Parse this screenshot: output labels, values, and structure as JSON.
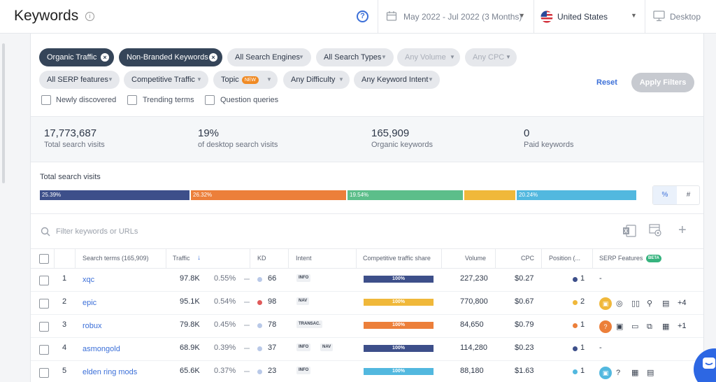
{
  "header": {
    "title": "Keywords",
    "info_icon": "info-icon",
    "help_icon": "help-icon",
    "date_range": "May 2022 - Jul 2022 (3 Months)",
    "country": "United States",
    "device": "Desktop"
  },
  "filters": {
    "chips_row1": [
      {
        "label": "Organic Traffic",
        "style": "dark",
        "removable": true
      },
      {
        "label": "Non-Branded Keywords",
        "style": "dark",
        "removable": true
      },
      {
        "label": "All Search Engines",
        "style": "grey"
      },
      {
        "label": "All Search Types",
        "style": "grey"
      },
      {
        "label": "Any Volume",
        "style": "disabled"
      },
      {
        "label": "Any CPC",
        "style": "disabled"
      }
    ],
    "chips_row2": [
      {
        "label": "All SERP features",
        "style": "grey"
      },
      {
        "label": "Competitive Traffic",
        "style": "grey"
      },
      {
        "label": "Topic",
        "style": "grey",
        "badge": "NEW"
      },
      {
        "label": "Any Difficulty",
        "style": "grey"
      },
      {
        "label": "Any Keyword Intent",
        "style": "grey"
      }
    ],
    "checkboxes": [
      {
        "label": "Newly discovered",
        "checked": false
      },
      {
        "label": "Trending terms",
        "checked": false
      },
      {
        "label": "Question queries",
        "checked": false
      }
    ],
    "reset": "Reset",
    "apply": "Apply Filters"
  },
  "stats": [
    {
      "value": "17,773,687",
      "label": "Total search visits"
    },
    {
      "value": "19%",
      "label": "of desktop search visits"
    },
    {
      "value": "165,909",
      "label": "Organic keywords"
    },
    {
      "value": "0",
      "label": "Paid keywords"
    }
  ],
  "visits_bar": {
    "title": "Total search visits",
    "segments": [
      {
        "label": "25.39%",
        "value": 25.39,
        "color": "#3d4f8a"
      },
      {
        "label": "26.32%",
        "value": 26.32,
        "color": "#ec7f3a"
      },
      {
        "label": "19.54%",
        "value": 19.54,
        "color": "#5cbe8a"
      },
      {
        "label": "",
        "value": 8.51,
        "color": "#f0b83a"
      },
      {
        "label": "20.24%",
        "value": 20.24,
        "color": "#52b8df"
      }
    ],
    "toggle": [
      "%",
      "#"
    ]
  },
  "table": {
    "filter_placeholder": "Filter keywords or URLs",
    "columns": {
      "search_terms": "Search terms (165,909)",
      "traffic": "Traffic",
      "kd": "KD",
      "intent": "Intent",
      "share": "Competitive traffic share",
      "volume": "Volume",
      "cpc": "CPC",
      "position": "Position (...",
      "serp": "SERP Features",
      "serp_badge": "BETA"
    },
    "rows": [
      {
        "num": "1",
        "keyword": "xqc",
        "traffic": "97.8K",
        "pct": "0.55%",
        "kd": "66",
        "kd_color": "#b9c9e8",
        "intent": [
          "INFO"
        ],
        "share": "100%",
        "share_color": "#3d4f8a",
        "volume": "227,230",
        "cpc": "$0.27",
        "pos": "1",
        "pos_color": "#3d4f8a",
        "serp": "-",
        "serp_more": ""
      },
      {
        "num": "2",
        "keyword": "epic",
        "traffic": "95.1K",
        "pct": "0.54%",
        "kd": "98",
        "kd_color": "#e05a5a",
        "intent": [
          "NAV"
        ],
        "share": "100%",
        "share_color": "#f0b83a",
        "volume": "770,800",
        "cpc": "$0.67",
        "pos": "2",
        "pos_color": "#f0b83a",
        "serp": "",
        "serp_more": "+4"
      },
      {
        "num": "3",
        "keyword": "robux",
        "traffic": "79.8K",
        "pct": "0.45%",
        "kd": "78",
        "kd_color": "#b9c9e8",
        "intent": [
          "TRANSAC."
        ],
        "share": "100%",
        "share_color": "#ec7f3a",
        "volume": "84,650",
        "cpc": "$0.79",
        "pos": "1",
        "pos_color": "#ec7f3a",
        "serp": "",
        "serp_more": "+1"
      },
      {
        "num": "4",
        "keyword": "asmongold",
        "traffic": "68.9K",
        "pct": "0.39%",
        "kd": "37",
        "kd_color": "#b9c9e8",
        "intent": [
          "INFO",
          "NAV"
        ],
        "share": "100%",
        "share_color": "#3d4f8a",
        "volume": "114,280",
        "cpc": "$0.23",
        "pos": "1",
        "pos_color": "#3d4f8a",
        "serp": "-",
        "serp_more": ""
      },
      {
        "num": "5",
        "keyword": "elden ring mods",
        "traffic": "65.6K",
        "pct": "0.37%",
        "kd": "23",
        "kd_color": "#b9c9e8",
        "intent": [
          "INFO"
        ],
        "share": "100%",
        "share_color": "#52b8df",
        "volume": "88,180",
        "cpc": "$1.63",
        "pos": "1",
        "pos_color": "#52b8df",
        "serp": "",
        "serp_more": ""
      }
    ]
  }
}
